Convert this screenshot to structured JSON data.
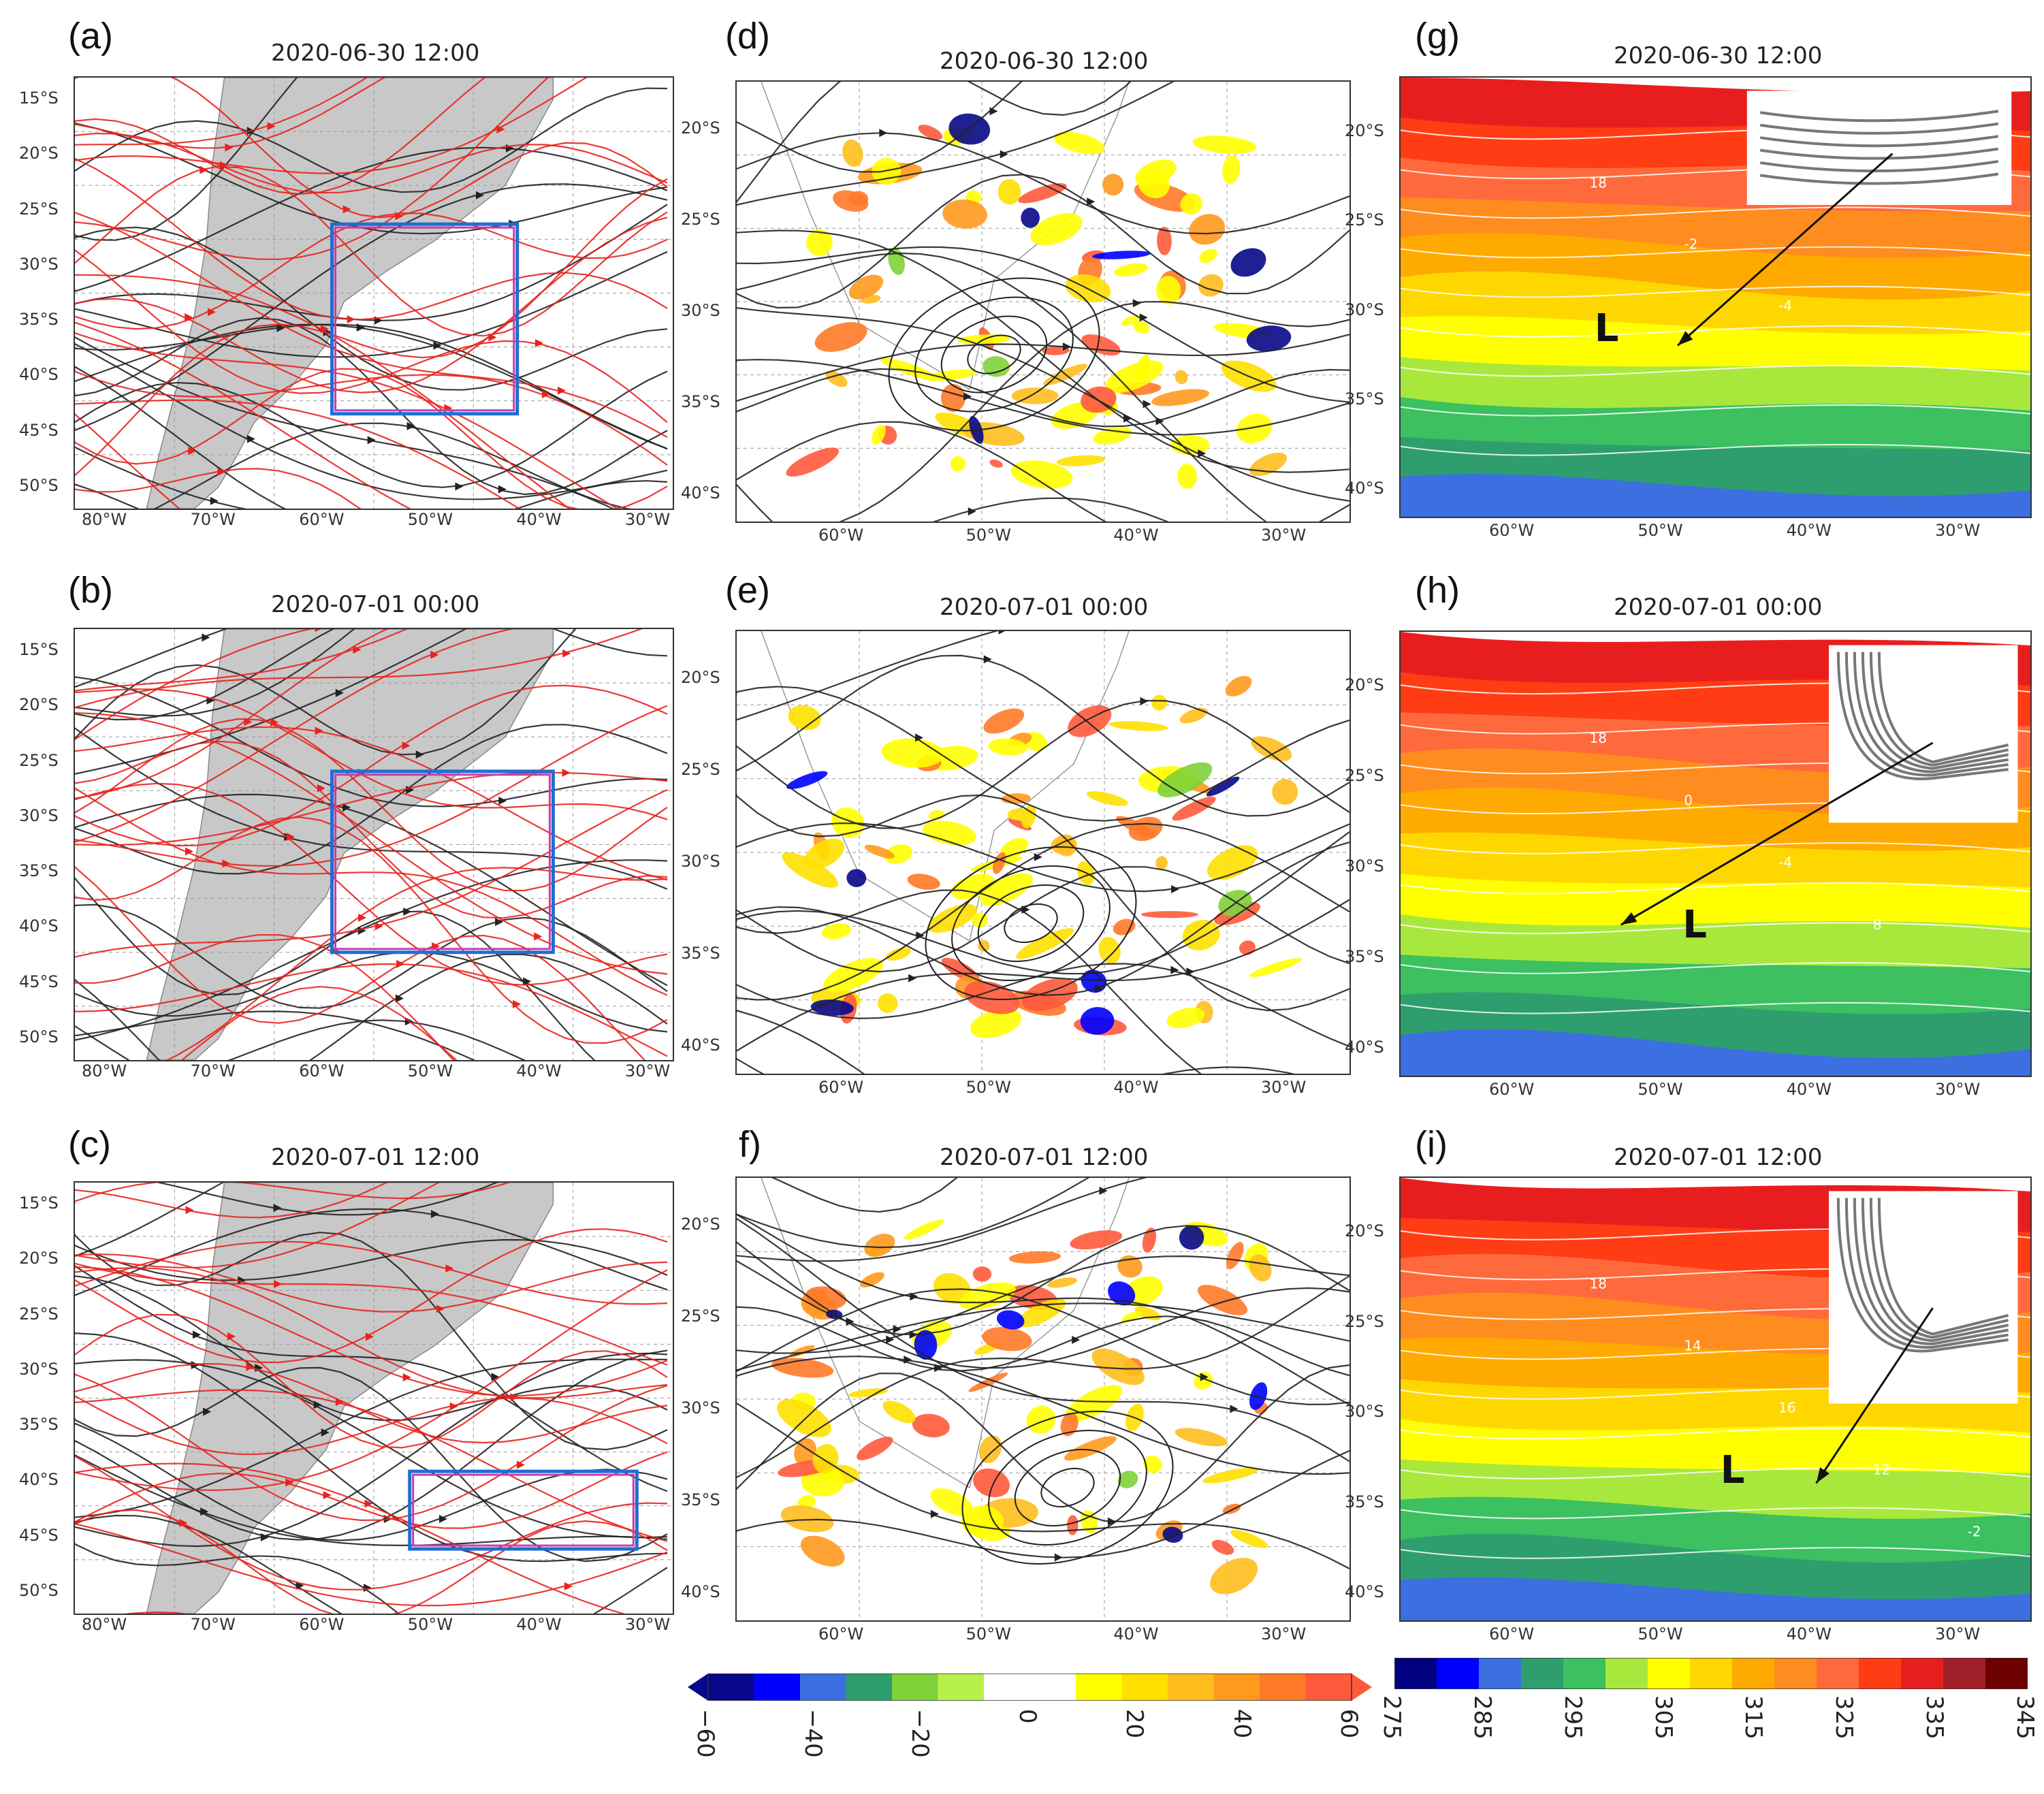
{
  "figure": {
    "columns": {
      "streamlines": {
        "panels": [
          {
            "label": "(a)",
            "title": "2020-06-30 12:00"
          },
          {
            "label": "(b)",
            "title": "2020-07-01 00:00"
          },
          {
            "label": "(c)",
            "title": "2020-07-01 12:00"
          }
        ],
        "lat_ticks": [
          "15°S",
          "20°S",
          "25°S",
          "30°S",
          "35°S",
          "40°S",
          "45°S",
          "50°S"
        ],
        "lon_ticks": [
          "80°W",
          "70°W",
          "60°W",
          "50°W",
          "40°W",
          "30°W"
        ],
        "colors": {
          "land": "#c8c8c8",
          "stream_black": "#222222",
          "stream_red": "#e8231e",
          "box_blue": "#1f6fd1",
          "box_magenta": "#c43fb0"
        }
      },
      "vorticity": {
        "panels": [
          {
            "label": "(d)",
            "title": "2020-06-30 12:00"
          },
          {
            "label": "(e)",
            "title": "2020-07-01 00:00"
          },
          {
            "label": "f)",
            "title": "2020-07-01 12:00"
          }
        ],
        "lat_ticks": [
          "20°S",
          "25°S",
          "30°S",
          "35°S",
          "40°S"
        ],
        "lon_ticks": [
          "60°W",
          "50°W",
          "40°W",
          "30°W"
        ],
        "colorbar_ticks": [
          "−60",
          "−40",
          "−20",
          "0",
          "20",
          "40",
          "60"
        ],
        "colorbar_colors": [
          "#08088a",
          "#0000ff",
          "#3c6fe0",
          "#2e9e6e",
          "#7fd23a",
          "#b7f04a",
          "#ffffff",
          "#ffffff",
          "#ffff00",
          "#ffe000",
          "#ffbe1e",
          "#ff9a1e",
          "#ff7a28",
          "#ff5a3c"
        ]
      },
      "theta": {
        "panels": [
          {
            "label": "(g)",
            "title": "2020-06-30 12:00",
            "low_label": "L"
          },
          {
            "label": "(h)",
            "title": "2020-07-01 00:00",
            "low_label": "L"
          },
          {
            "label": "(i)",
            "title": "2020-07-01 12:00",
            "low_label": "L"
          }
        ],
        "lat_ticks": [
          "20°S",
          "25°S",
          "30°S",
          "35°S",
          "40°S"
        ],
        "lon_ticks": [
          "60°W",
          "50°W",
          "40°W",
          "30°W"
        ],
        "contour_labels": {
          "g": [
            "18",
            "-2",
            "-4"
          ],
          "h": [
            "18",
            "0",
            "-4",
            "8"
          ],
          "i": [
            "18",
            "14",
            "16",
            "12",
            "-2"
          ]
        },
        "colorbar_ticks": [
          "275",
          "285",
          "295",
          "305",
          "315",
          "325",
          "335",
          "345"
        ],
        "colorbar_colors": [
          "#000080",
          "#0000ff",
          "#3c6fe0",
          "#2e9e6e",
          "#3cc060",
          "#a8e83c",
          "#ffff00",
          "#ffd700",
          "#ffaa00",
          "#ff8c1e",
          "#ff6a3c",
          "#ff3c14",
          "#e81e1e",
          "#a01e28",
          "#6e0000"
        ]
      }
    }
  }
}
